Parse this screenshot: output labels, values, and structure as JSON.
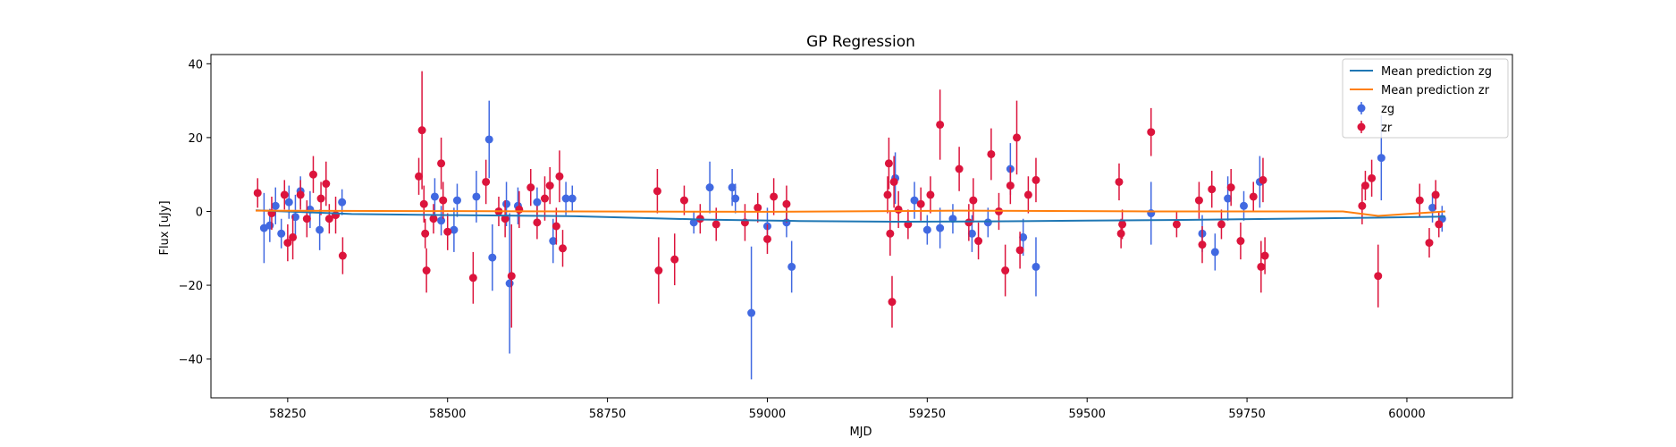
{
  "chart_data": {
    "type": "scatter",
    "title": "GP Regression",
    "xlabel": "MJD",
    "ylabel": "Flux [uJy]",
    "xlim": [
      58130,
      60165
    ],
    "ylim": [
      -50.5,
      42.5
    ],
    "xticks": [
      58250,
      58500,
      58750,
      59000,
      59250,
      59500,
      59750,
      60000
    ],
    "yticks": [
      -40,
      -20,
      0,
      20,
      40
    ],
    "grid": false,
    "legend_position": "top-right",
    "colors": {
      "zg": "#4169e1",
      "zr": "#dc143c",
      "mean_zg": "#1f77b4",
      "mean_zr": "#ff7f0e"
    },
    "series": [
      {
        "name": "Mean prediction zg",
        "kind": "line",
        "x": [
          58200,
          58350,
          58500,
          58700,
          58900,
          59050,
          59200,
          59350,
          59500,
          59650,
          59800,
          59950,
          60060
        ],
        "y": [
          0.3,
          -0.7,
          -1.0,
          -1.3,
          -2.2,
          -2.6,
          -2.8,
          -2.7,
          -2.5,
          -2.3,
          -2.0,
          -1.7,
          -1.4
        ]
      },
      {
        "name": "Mean prediction zr",
        "kind": "line",
        "x": [
          58200,
          58450,
          58700,
          59000,
          59300,
          59600,
          59900,
          59955,
          60060
        ],
        "y": [
          0.2,
          0.1,
          0.0,
          -0.1,
          0.2,
          0.0,
          0.0,
          -1.2,
          0.0
        ]
      },
      {
        "name": "zg",
        "kind": "errorbar",
        "points": [
          {
            "x": 58213,
            "y": -4.5,
            "e": 9.5
          },
          {
            "x": 58222,
            "y": -3.8,
            "e": 4.5
          },
          {
            "x": 58231,
            "y": 1.5,
            "e": 5.0
          },
          {
            "x": 58240,
            "y": -6.0,
            "e": 4.0
          },
          {
            "x": 58252,
            "y": 2.5,
            "e": 4.5
          },
          {
            "x": 58262,
            "y": -1.5,
            "e": 6.0
          },
          {
            "x": 58270,
            "y": 5.5,
            "e": 4.0
          },
          {
            "x": 58285,
            "y": 0.5,
            "e": 5.0
          },
          {
            "x": 58300,
            "y": -5.0,
            "e": 5.5
          },
          {
            "x": 58335,
            "y": 2.5,
            "e": 3.5
          },
          {
            "x": 58480,
            "y": 4.0,
            "e": 5.0
          },
          {
            "x": 58490,
            "y": -2.5,
            "e": 4.0
          },
          {
            "x": 58510,
            "y": -5.0,
            "e": 6.0
          },
          {
            "x": 58515,
            "y": 3.0,
            "e": 4.5
          },
          {
            "x": 58545,
            "y": 4.0,
            "e": 7.0
          },
          {
            "x": 58565,
            "y": 19.5,
            "e": 10.5
          },
          {
            "x": 58570,
            "y": -12.5,
            "e": 9.0
          },
          {
            "x": 58592,
            "y": 2.0,
            "e": 6.0
          },
          {
            "x": 58597,
            "y": -19.5,
            "e": 19.0
          },
          {
            "x": 58610,
            "y": 1.5,
            "e": 5.0
          },
          {
            "x": 58640,
            "y": 2.5,
            "e": 4.0
          },
          {
            "x": 58665,
            "y": -8.0,
            "e": 6.0
          },
          {
            "x": 58685,
            "y": 3.5,
            "e": 4.5
          },
          {
            "x": 58695,
            "y": 3.5,
            "e": 3.5
          },
          {
            "x": 58885,
            "y": -3.0,
            "e": 3.0
          },
          {
            "x": 58910,
            "y": 6.5,
            "e": 7.0
          },
          {
            "x": 58945,
            "y": 6.5,
            "e": 5.0
          },
          {
            "x": 58950,
            "y": 3.5,
            "e": 4.0
          },
          {
            "x": 58975,
            "y": -27.5,
            "e": 18.0
          },
          {
            "x": 59000,
            "y": -4.0,
            "e": 5.0
          },
          {
            "x": 59030,
            "y": -3.0,
            "e": 4.0
          },
          {
            "x": 59038,
            "y": -15.0,
            "e": 7.0
          },
          {
            "x": 59200,
            "y": 9.0,
            "e": 7.0
          },
          {
            "x": 59230,
            "y": 3.0,
            "e": 5.0
          },
          {
            "x": 59250,
            "y": -5.0,
            "e": 4.0
          },
          {
            "x": 59270,
            "y": -4.5,
            "e": 5.5
          },
          {
            "x": 59290,
            "y": -2.0,
            "e": 4.0
          },
          {
            "x": 59320,
            "y": -6.0,
            "e": 5.0
          },
          {
            "x": 59345,
            "y": -3.0,
            "e": 4.0
          },
          {
            "x": 59380,
            "y": 11.5,
            "e": 7.0
          },
          {
            "x": 59400,
            "y": -7.0,
            "e": 5.0
          },
          {
            "x": 59420,
            "y": -15.0,
            "e": 8.0
          },
          {
            "x": 59600,
            "y": -0.5,
            "e": 8.5
          },
          {
            "x": 59680,
            "y": -6.0,
            "e": 5.0
          },
          {
            "x": 59700,
            "y": -11.0,
            "e": 5.0
          },
          {
            "x": 59720,
            "y": 3.5,
            "e": 6.0
          },
          {
            "x": 59745,
            "y": 1.5,
            "e": 4.0
          },
          {
            "x": 59770,
            "y": 8.0,
            "e": 7.0
          },
          {
            "x": 59960,
            "y": 14.5,
            "e": 11.5
          },
          {
            "x": 60040,
            "y": 1.0,
            "e": 4.0
          },
          {
            "x": 60055,
            "y": -2.0,
            "e": 3.5
          }
        ]
      },
      {
        "name": "zr",
        "kind": "errorbar",
        "points": [
          {
            "x": 58203,
            "y": 5.0,
            "e": 4.0
          },
          {
            "x": 58225,
            "y": -0.5,
            "e": 4.5
          },
          {
            "x": 58245,
            "y": 4.5,
            "e": 4.0
          },
          {
            "x": 58250,
            "y": -8.5,
            "e": 5.0
          },
          {
            "x": 58258,
            "y": -7.0,
            "e": 6.0
          },
          {
            "x": 58270,
            "y": 4.5,
            "e": 4.0
          },
          {
            "x": 58280,
            "y": -2.0,
            "e": 5.0
          },
          {
            "x": 58290,
            "y": 10.0,
            "e": 5.0
          },
          {
            "x": 58302,
            "y": 3.5,
            "e": 4.5
          },
          {
            "x": 58310,
            "y": 7.5,
            "e": 6.0
          },
          {
            "x": 58315,
            "y": -2.0,
            "e": 4.0
          },
          {
            "x": 58325,
            "y": -1.0,
            "e": 5.0
          },
          {
            "x": 58336,
            "y": -12.0,
            "e": 5.0
          },
          {
            "x": 58455,
            "y": 9.5,
            "e": 5.0
          },
          {
            "x": 58460,
            "y": 22.0,
            "e": 16.0
          },
          {
            "x": 58463,
            "y": 2.0,
            "e": 5.0
          },
          {
            "x": 58465,
            "y": -6.0,
            "e": 4.0
          },
          {
            "x": 58467,
            "y": -16.0,
            "e": 6.0
          },
          {
            "x": 58478,
            "y": -2.0,
            "e": 4.0
          },
          {
            "x": 58490,
            "y": 13.0,
            "e": 7.0
          },
          {
            "x": 58493,
            "y": 3.0,
            "e": 5.0
          },
          {
            "x": 58500,
            "y": -5.5,
            "e": 5.0
          },
          {
            "x": 58540,
            "y": -18.0,
            "e": 7.0
          },
          {
            "x": 58560,
            "y": 8.0,
            "e": 6.0
          },
          {
            "x": 58580,
            "y": 0.0,
            "e": 4.0
          },
          {
            "x": 58590,
            "y": -2.0,
            "e": 5.0
          },
          {
            "x": 58600,
            "y": -17.5,
            "e": 14.0
          },
          {
            "x": 58612,
            "y": 0.5,
            "e": 5.0
          },
          {
            "x": 58630,
            "y": 6.5,
            "e": 5.0
          },
          {
            "x": 58640,
            "y": -3.0,
            "e": 4.5
          },
          {
            "x": 58652,
            "y": 3.5,
            "e": 6.0
          },
          {
            "x": 58660,
            "y": 7.0,
            "e": 5.0
          },
          {
            "x": 58670,
            "y": -4.0,
            "e": 5.0
          },
          {
            "x": 58675,
            "y": 9.5,
            "e": 7.0
          },
          {
            "x": 58680,
            "y": -10.0,
            "e": 5.0
          },
          {
            "x": 58828,
            "y": 5.5,
            "e": 6.0
          },
          {
            "x": 58830,
            "y": -16.0,
            "e": 9.0
          },
          {
            "x": 58855,
            "y": -13.0,
            "e": 7.0
          },
          {
            "x": 58870,
            "y": 3.0,
            "e": 4.0
          },
          {
            "x": 58895,
            "y": -2.0,
            "e": 4.0
          },
          {
            "x": 58920,
            "y": -3.5,
            "e": 4.5
          },
          {
            "x": 58965,
            "y": -3.0,
            "e": 5.0
          },
          {
            "x": 58985,
            "y": 1.0,
            "e": 4.0
          },
          {
            "x": 59000,
            "y": -7.5,
            "e": 4.0
          },
          {
            "x": 59010,
            "y": 4.0,
            "e": 5.0
          },
          {
            "x": 59030,
            "y": 2.0,
            "e": 5.0
          },
          {
            "x": 59188,
            "y": 4.5,
            "e": 5.0
          },
          {
            "x": 59190,
            "y": 13.0,
            "e": 7.0
          },
          {
            "x": 59192,
            "y": -6.0,
            "e": 6.0
          },
          {
            "x": 59195,
            "y": -24.5,
            "e": 7.0
          },
          {
            "x": 59198,
            "y": 8.0,
            "e": 7.0
          },
          {
            "x": 59205,
            "y": 0.5,
            "e": 5.0
          },
          {
            "x": 59220,
            "y": -3.5,
            "e": 4.0
          },
          {
            "x": 59240,
            "y": 2.0,
            "e": 4.5
          },
          {
            "x": 59255,
            "y": 4.5,
            "e": 5.0
          },
          {
            "x": 59270,
            "y": 23.5,
            "e": 9.5
          },
          {
            "x": 59300,
            "y": 11.5,
            "e": 6.0
          },
          {
            "x": 59315,
            "y": -3.0,
            "e": 5.0
          },
          {
            "x": 59322,
            "y": 3.0,
            "e": 6.0
          },
          {
            "x": 59330,
            "y": -8.0,
            "e": 5.0
          },
          {
            "x": 59350,
            "y": 15.5,
            "e": 7.0
          },
          {
            "x": 59362,
            "y": 0.0,
            "e": 5.0
          },
          {
            "x": 59372,
            "y": -16.0,
            "e": 7.0
          },
          {
            "x": 59380,
            "y": 7.0,
            "e": 5.0
          },
          {
            "x": 59390,
            "y": 20.0,
            "e": 10.0
          },
          {
            "x": 59395,
            "y": -10.5,
            "e": 5.0
          },
          {
            "x": 59408,
            "y": 4.5,
            "e": 5.0
          },
          {
            "x": 59420,
            "y": 8.5,
            "e": 6.0
          },
          {
            "x": 59550,
            "y": 8.0,
            "e": 5.0
          },
          {
            "x": 59553,
            "y": -6.0,
            "e": 4.0
          },
          {
            "x": 59555,
            "y": -3.5,
            "e": 4.0
          },
          {
            "x": 59600,
            "y": 21.5,
            "e": 6.5
          },
          {
            "x": 59640,
            "y": -3.5,
            "e": 3.5
          },
          {
            "x": 59675,
            "y": 3.0,
            "e": 5.0
          },
          {
            "x": 59680,
            "y": -9.0,
            "e": 5.0
          },
          {
            "x": 59695,
            "y": 6.0,
            "e": 5.0
          },
          {
            "x": 59710,
            "y": -3.5,
            "e": 4.0
          },
          {
            "x": 59725,
            "y": 6.5,
            "e": 5.0
          },
          {
            "x": 59740,
            "y": -8.0,
            "e": 5.0
          },
          {
            "x": 59760,
            "y": 4.0,
            "e": 4.0
          },
          {
            "x": 59772,
            "y": -15.0,
            "e": 7.0
          },
          {
            "x": 59775,
            "y": 8.5,
            "e": 6.0
          },
          {
            "x": 59778,
            "y": -12.0,
            "e": 5.0
          },
          {
            "x": 59930,
            "y": 1.5,
            "e": 5.0
          },
          {
            "x": 59935,
            "y": 7.0,
            "e": 4.0
          },
          {
            "x": 59945,
            "y": 9.0,
            "e": 5.0
          },
          {
            "x": 59955,
            "y": -17.5,
            "e": 8.5
          },
          {
            "x": 60020,
            "y": 3.0,
            "e": 4.5
          },
          {
            "x": 60035,
            "y": -8.5,
            "e": 4.0
          },
          {
            "x": 60045,
            "y": 4.5,
            "e": 4.0
          },
          {
            "x": 60050,
            "y": -3.5,
            "e": 3.5
          }
        ]
      }
    ]
  }
}
